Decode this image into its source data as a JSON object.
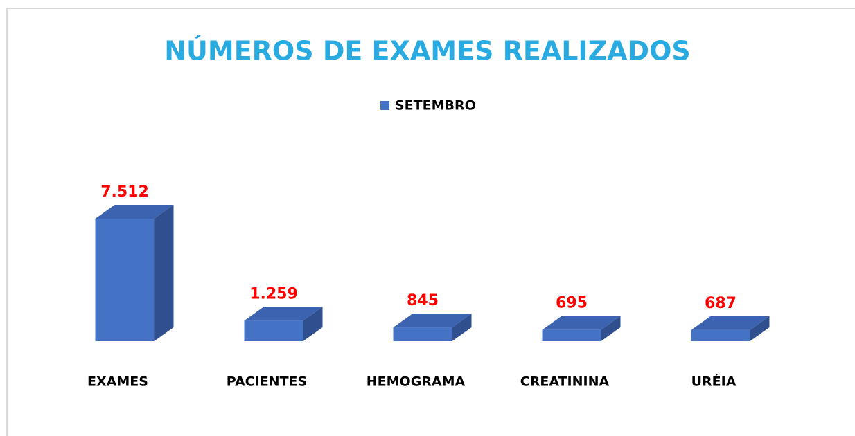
{
  "chart_data": {
    "type": "bar3d",
    "title": "NÚMEROS DE EXAMES REALIZADOS",
    "categories": [
      "EXAMES",
      "PACIENTES",
      "HEMOGRAMA",
      "CREATININA",
      "URÉIA"
    ],
    "series": [
      {
        "name": "SETEMBRO",
        "color": "#4472c4",
        "values": [
          7512,
          1259,
          845,
          695,
          687
        ],
        "value_labels": [
          "7.512",
          "1.259",
          "845",
          "695",
          "687"
        ]
      }
    ],
    "legend": "top"
  }
}
